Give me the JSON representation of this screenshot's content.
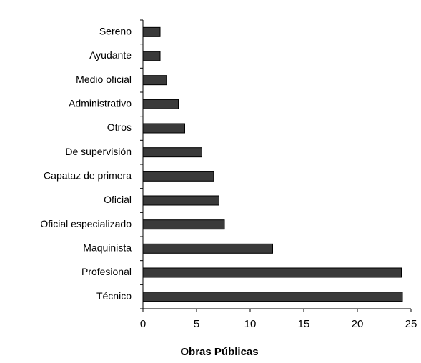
{
  "chart_data": {
    "type": "bar",
    "orientation": "horizontal",
    "x_label": "Obras Públicas",
    "categories": [
      "Sereno",
      "Ayudante",
      "Medio oficial",
      "Administrativo",
      "Otros",
      "De supervisión",
      "Capataz de primera",
      "Oficial",
      "Oficial especializado",
      "Maquinista",
      "Profesional",
      "Técnico"
    ],
    "values": [
      1.6,
      1.6,
      2.2,
      3.3,
      3.9,
      5.5,
      6.6,
      7.1,
      7.6,
      12.1,
      24.1,
      24.2
    ],
    "color": "#3a3a3a",
    "xlim": [
      0,
      25
    ],
    "xticks": [
      0,
      5,
      10,
      15,
      20,
      25
    ],
    "grid": false
  }
}
